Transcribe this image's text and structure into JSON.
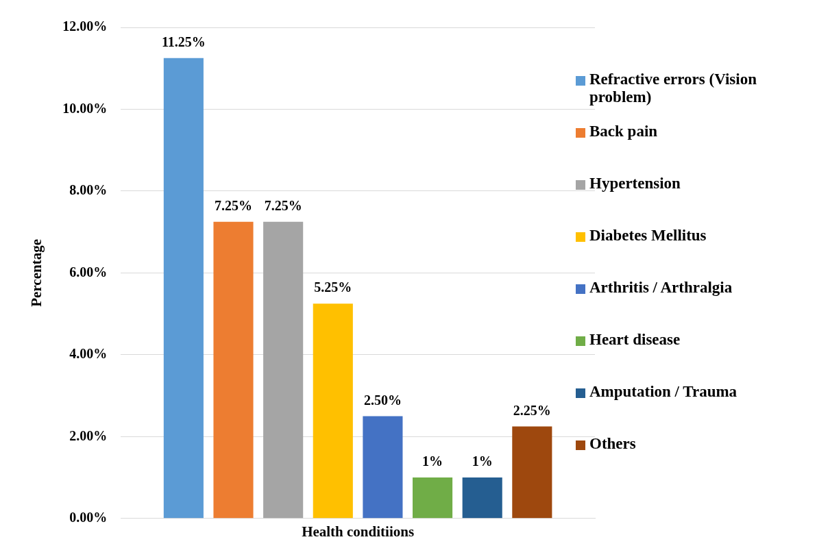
{
  "chart_data": {
    "type": "bar",
    "categories": [
      "Health conditiions"
    ],
    "ylabel": "Percentage",
    "ylim": [
      0,
      12
    ],
    "yticks": [
      {
        "value": 0,
        "label": "0.00%"
      },
      {
        "value": 2,
        "label": "2.00%"
      },
      {
        "value": 4,
        "label": "4.00%"
      },
      {
        "value": 6,
        "label": "6.00%"
      },
      {
        "value": 8,
        "label": "8.00%"
      },
      {
        "value": 10,
        "label": "10.00%"
      },
      {
        "value": 12,
        "label": "12.00%"
      }
    ],
    "grid": "y",
    "legend": "right",
    "series": [
      {
        "name": "Refractive errors (Vision problem)",
        "color": "#5b9bd5",
        "values": [
          11.25
        ],
        "value_labels": [
          "11.25%"
        ]
      },
      {
        "name": "Back pain",
        "color": "#ed7d31",
        "values": [
          7.25
        ],
        "value_labels": [
          "7.25%"
        ]
      },
      {
        "name": "Hypertension",
        "color": "#a5a5a5",
        "values": [
          7.25
        ],
        "value_labels": [
          "7.25%"
        ]
      },
      {
        "name": "Diabetes Mellitus",
        "color": "#ffc000",
        "values": [
          5.25
        ],
        "value_labels": [
          "5.25%"
        ]
      },
      {
        "name": "Arthritis / Arthralgia",
        "color": "#4472c4",
        "values": [
          2.5
        ],
        "value_labels": [
          "2.50%"
        ]
      },
      {
        "name": "Heart disease",
        "color": "#70ad47",
        "values": [
          1
        ],
        "value_labels": [
          "1%"
        ]
      },
      {
        "name": "Amputation / Trauma",
        "color": "#255e91",
        "values": [
          1
        ],
        "value_labels": [
          "1%"
        ]
      },
      {
        "name": "Others",
        "color": "#9e480e",
        "values": [
          2.25
        ],
        "value_labels": [
          "2.25%"
        ]
      }
    ]
  }
}
